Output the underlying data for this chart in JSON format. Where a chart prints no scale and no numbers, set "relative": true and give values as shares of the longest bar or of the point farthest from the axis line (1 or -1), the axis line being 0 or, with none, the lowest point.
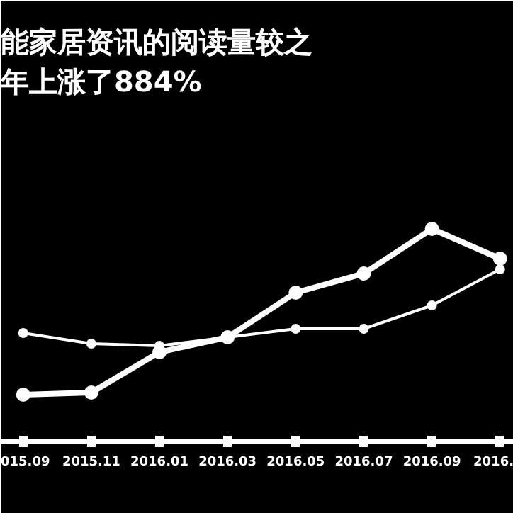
{
  "chart_data": {
    "type": "line",
    "title": "能家居资讯的阅读量较之",
    "subtitle": "年上涨了884%",
    "relative": true,
    "categories": [
      "015.09",
      "2015.11",
      "2016.01",
      "2016.03",
      "2016.05",
      "2016.07",
      "2016.09",
      "2016."
    ],
    "series": [
      {
        "color": "#ffffff",
        "values": [
          0.22,
          0.23,
          0.42,
          0.49,
          0.7,
          0.79,
          1.0,
          0.86
        ]
      },
      {
        "color": "#ffffff",
        "values": [
          0.51,
          0.46,
          0.45,
          0.49,
          0.53,
          0.53,
          0.64,
          0.81
        ]
      }
    ],
    "marker": "circle",
    "grid": false
  }
}
